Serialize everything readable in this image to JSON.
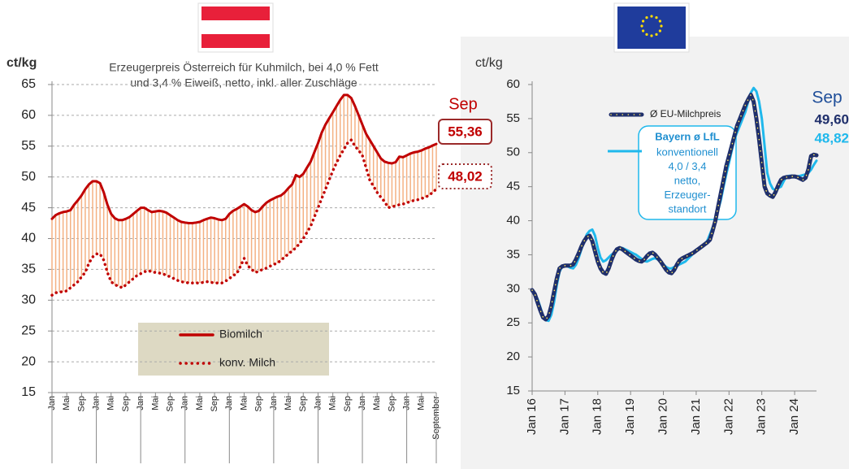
{
  "chart_data": [
    {
      "type": "line",
      "title": [
        "Erzeugerpreis Österreich für Kuhmilch, bei 4,0 % Fett",
        "und 3,4 % Eiweiß, netto, inkl. aller Zuschläge"
      ],
      "y_label": "ct/kg",
      "ylim": [
        15,
        65
      ],
      "yticks": [
        15,
        20,
        25,
        30,
        35,
        40,
        45,
        50,
        55,
        60,
        65
      ],
      "grid": true,
      "fill_between": true,
      "fill_color": "#f4b183",
      "end_month": "Sep",
      "categories": [
        "Jan",
        null,
        null,
        null,
        "Mai",
        null,
        null,
        null,
        "Sep",
        null,
        null,
        null,
        "Jan",
        null,
        null,
        null,
        "Mai",
        null,
        null,
        null,
        "Sep",
        null,
        null,
        null,
        "Jan",
        null,
        null,
        null,
        "Mai",
        null,
        null,
        null,
        "Sep",
        null,
        null,
        null,
        "Jan",
        null,
        null,
        null,
        "Mai",
        null,
        null,
        null,
        "Sep",
        null,
        null,
        null,
        "Jan",
        null,
        null,
        null,
        "Mai",
        null,
        null,
        null,
        "Sep",
        null,
        null,
        null,
        "Jan",
        null,
        null,
        null,
        "Mai",
        null,
        null,
        null,
        "Sep",
        null,
        null,
        null,
        "Jan",
        null,
        null,
        null,
        "Mai",
        null,
        null,
        null,
        "Sep",
        null,
        null,
        null,
        "Jan",
        null,
        null,
        null,
        "Mai",
        null,
        null,
        null,
        "Sep",
        null,
        null,
        null,
        "Jan",
        null,
        null,
        null,
        "Mai",
        null,
        null,
        null,
        "September"
      ],
      "series": [
        {
          "name": "Biomilch",
          "color": "#c00000",
          "dash": "solid",
          "end_label": "55,36",
          "values": [
            43.2,
            43.8,
            44.1,
            44.3,
            44.4,
            44.6,
            45.5,
            46.2,
            47,
            48,
            48.8,
            49.3,
            49.3,
            49,
            47.5,
            45.5,
            44,
            43.3,
            43,
            43,
            43.2,
            43.5,
            44,
            44.5,
            45,
            45,
            44.6,
            44.3,
            44.4,
            44.5,
            44.4,
            44.2,
            43.8,
            43.4,
            43,
            42.7,
            42.6,
            42.5,
            42.5,
            42.6,
            42.7,
            43,
            43.2,
            43.4,
            43.3,
            43.1,
            43,
            43.2,
            44,
            44.5,
            44.8,
            45.2,
            45.6,
            45.2,
            44.6,
            44.3,
            44.5,
            45.2,
            45.8,
            46.2,
            46.5,
            46.8,
            47,
            47.5,
            48.2,
            48.8,
            50.3,
            50,
            50.5,
            51.5,
            52.5,
            54,
            55.5,
            57.2,
            58.5,
            59.5,
            60.5,
            61.5,
            62.5,
            63.3,
            63.3,
            62.8,
            61.5,
            60,
            58.5,
            57,
            56,
            55,
            54,
            53,
            52.5,
            52.3,
            52.2,
            52.4,
            53.3,
            53.2,
            53.5,
            53.8,
            54,
            54.1,
            54.3,
            54.6,
            54.8,
            55.1,
            55.36
          ]
        },
        {
          "name": "konv. Milch",
          "color": "#c00000",
          "dash": "dotted",
          "end_label": "48,02",
          "values": [
            30.8,
            31.2,
            31.3,
            31.4,
            31.5,
            32,
            32.5,
            33,
            33.8,
            34.5,
            36,
            37,
            37.5,
            37.5,
            36.5,
            34.5,
            33,
            32.5,
            32.3,
            32,
            32.5,
            33,
            33.5,
            34,
            34.3,
            34.6,
            34.8,
            34.6,
            34.5,
            34.4,
            34.3,
            34,
            33.8,
            33.5,
            33.2,
            33,
            32.9,
            32.8,
            32.8,
            32.8,
            32.8,
            32.9,
            33,
            32.9,
            32.8,
            32.8,
            32.8,
            33.1,
            33.5,
            34,
            34.3,
            35.5,
            36.8,
            35.6,
            35,
            34.5,
            34.7,
            35,
            35.2,
            35.5,
            35.8,
            36,
            36.5,
            37,
            37.5,
            38,
            38.5,
            39.2,
            40,
            41,
            42,
            43.5,
            45,
            46.5,
            48,
            49.5,
            51,
            52.3,
            53.5,
            54.5,
            55.5,
            56,
            55,
            54.3,
            53.5,
            51.5,
            49.5,
            48.5,
            47.5,
            46.7,
            46,
            45,
            45.2,
            45.3,
            45.5,
            45.6,
            45.8,
            46,
            46.2,
            46.3,
            46.5,
            46.7,
            47,
            47.5,
            48.02
          ]
        }
      ]
    },
    {
      "type": "line",
      "y_label": "ct/kg",
      "ylim": [
        15,
        60
      ],
      "yticks": [
        15,
        20,
        25,
        30,
        35,
        40,
        45,
        50,
        55,
        60
      ],
      "grid": false,
      "end_month": "Sep",
      "legend_note": [
        "konventionell",
        "4,0 / 3,4",
        "netto,",
        "Erzeuger-",
        "standort"
      ],
      "categories": [
        "Jan 16",
        null,
        null,
        null,
        null,
        null,
        null,
        null,
        null,
        null,
        null,
        null,
        "Jan 17",
        null,
        null,
        null,
        null,
        null,
        null,
        null,
        null,
        null,
        null,
        null,
        "Jan 18",
        null,
        null,
        null,
        null,
        null,
        null,
        null,
        null,
        null,
        null,
        null,
        "Jan 19",
        null,
        null,
        null,
        null,
        null,
        null,
        null,
        null,
        null,
        null,
        null,
        "Jan 20",
        null,
        null,
        null,
        null,
        null,
        null,
        null,
        null,
        null,
        null,
        null,
        "Jan 21",
        null,
        null,
        null,
        null,
        null,
        null,
        null,
        null,
        null,
        null,
        null,
        "Jan 22",
        null,
        null,
        null,
        null,
        null,
        null,
        null,
        null,
        null,
        null,
        null,
        "Jan 23",
        null,
        null,
        null,
        null,
        null,
        null,
        null,
        null,
        null,
        null,
        null,
        "Jan 24",
        null,
        null,
        null,
        null,
        null,
        null,
        null,
        null
      ],
      "series": [
        {
          "name": "Ø EU-Milchpreis",
          "color": "#1f2f6b",
          "dot_color": "#ffe75a",
          "end_label": "49,60",
          "values": [
            29.8,
            29.2,
            28,
            26.8,
            25.8,
            25.5,
            26,
            27.5,
            29.5,
            31.5,
            33,
            33.3,
            33.4,
            33.4,
            33.4,
            33.6,
            34.3,
            35.2,
            36.2,
            37,
            37.6,
            37.8,
            37,
            35.5,
            34,
            33,
            32.4,
            32.2,
            33,
            34.2,
            35.2,
            35.8,
            36,
            35.8,
            35.5,
            35.2,
            34.9,
            34.6,
            34.3,
            34.1,
            34,
            34.3,
            34.8,
            35.2,
            35.3,
            35,
            34.5,
            34,
            33.4,
            32.8,
            32.4,
            32.3,
            32.8,
            33.6,
            34.2,
            34.5,
            34.7,
            34.9,
            35.1,
            35.3,
            35.6,
            35.9,
            36.2,
            36.5,
            36.8,
            37.2,
            38.5,
            40,
            42,
            44,
            46,
            48,
            49.5,
            51,
            52.5,
            54,
            55,
            56,
            57,
            57.8,
            58.5,
            57.5,
            55,
            52,
            48.5,
            45,
            44,
            43.7,
            43.5,
            44.2,
            45.2,
            46,
            46.3,
            46.4,
            46.4,
            46.5,
            46.5,
            46.4,
            46.2,
            46,
            46.3,
            47.5,
            49.5,
            49.7,
            49.6
          ]
        },
        {
          "name": "Bayern ø LfL",
          "color": "#1fb8ec",
          "end_label": "48,82",
          "values": [
            29.8,
            29.3,
            28.5,
            27.3,
            26,
            25.4,
            25.3,
            26.2,
            28,
            30.5,
            32.5,
            33.3,
            33.5,
            33.3,
            33.1,
            33,
            33.5,
            34.5,
            35.8,
            37,
            38,
            38.5,
            38.7,
            37.8,
            36,
            34.6,
            34,
            34.2,
            34.6,
            35,
            35.3,
            35.6,
            35.9,
            36,
            35.8,
            35.6,
            35.4,
            35.2,
            35,
            34.7,
            34.4,
            34.1,
            34,
            34.2,
            34.4,
            34.5,
            34.3,
            34,
            33.6,
            33.2,
            33,
            33,
            33.2,
            33.4,
            33.6,
            33.8,
            34,
            34.4,
            34.8,
            35.2,
            35.5,
            35.8,
            36.2,
            36.6,
            37,
            38,
            39,
            40,
            41.5,
            43,
            45,
            46.8,
            48.5,
            50.3,
            52,
            53,
            54,
            55,
            56,
            57.5,
            58.8,
            59.5,
            59,
            57.5,
            55,
            51,
            47,
            45.5,
            44.7,
            44.5,
            44.8,
            45,
            45.8,
            46.5,
            46.6,
            46.6,
            46.5,
            46.5,
            46.6,
            46.7,
            46.8,
            47,
            47.5,
            48.2,
            48.82
          ]
        }
      ]
    }
  ]
}
